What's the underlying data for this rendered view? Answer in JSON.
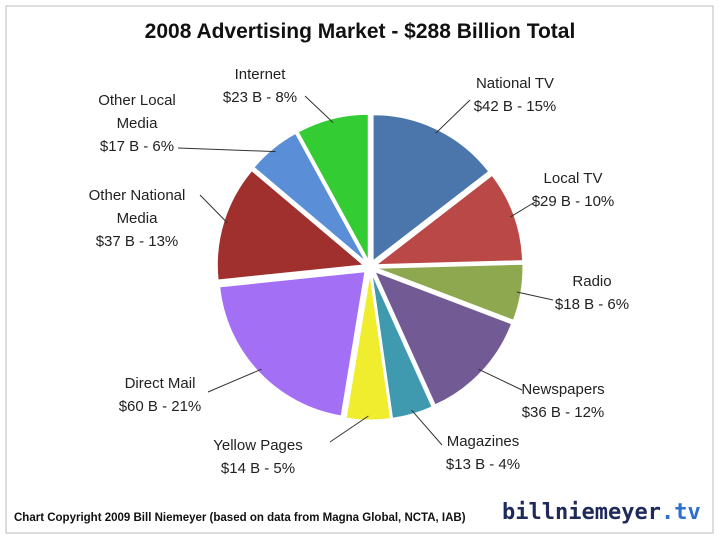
{
  "chart_data": {
    "type": "pie",
    "title": "2008 Advertising  Market - $288 Billion Total",
    "categories": [
      "National TV",
      "Local TV",
      "Radio",
      "Newspapers",
      "Magazines",
      "Yellow Pages",
      "Direct Mail",
      "Other National Media",
      "Other Local Media",
      "Internet"
    ],
    "values": [
      42,
      29,
      18,
      36,
      13,
      14,
      60,
      37,
      17,
      23
    ],
    "value_labels": [
      "$42 B - 15%",
      "$29 B - 10%",
      "$18 B - 6%",
      "$36 B - 12%",
      "$13 B - 4%",
      "$14 B - 5%",
      "$60 B - 21%",
      "$37 B - 13%",
      "$17 B - 6%",
      "$23 B - 8%"
    ],
    "colors": [
      "#4a76ac",
      "#b94846",
      "#8ea84f",
      "#725a95",
      "#3f9ab0",
      "#f0ec2e",
      "#a36ff5",
      "#9f302d",
      "#5a8ed6",
      "#33cc33"
    ]
  },
  "footer": {
    "copyright": "Chart Copyright 2009 Bill Niemeyer (based on data from Magna Global, NCTA, IAB)",
    "logo_name": "billniemeyer",
    "logo_tld": ".tv"
  }
}
